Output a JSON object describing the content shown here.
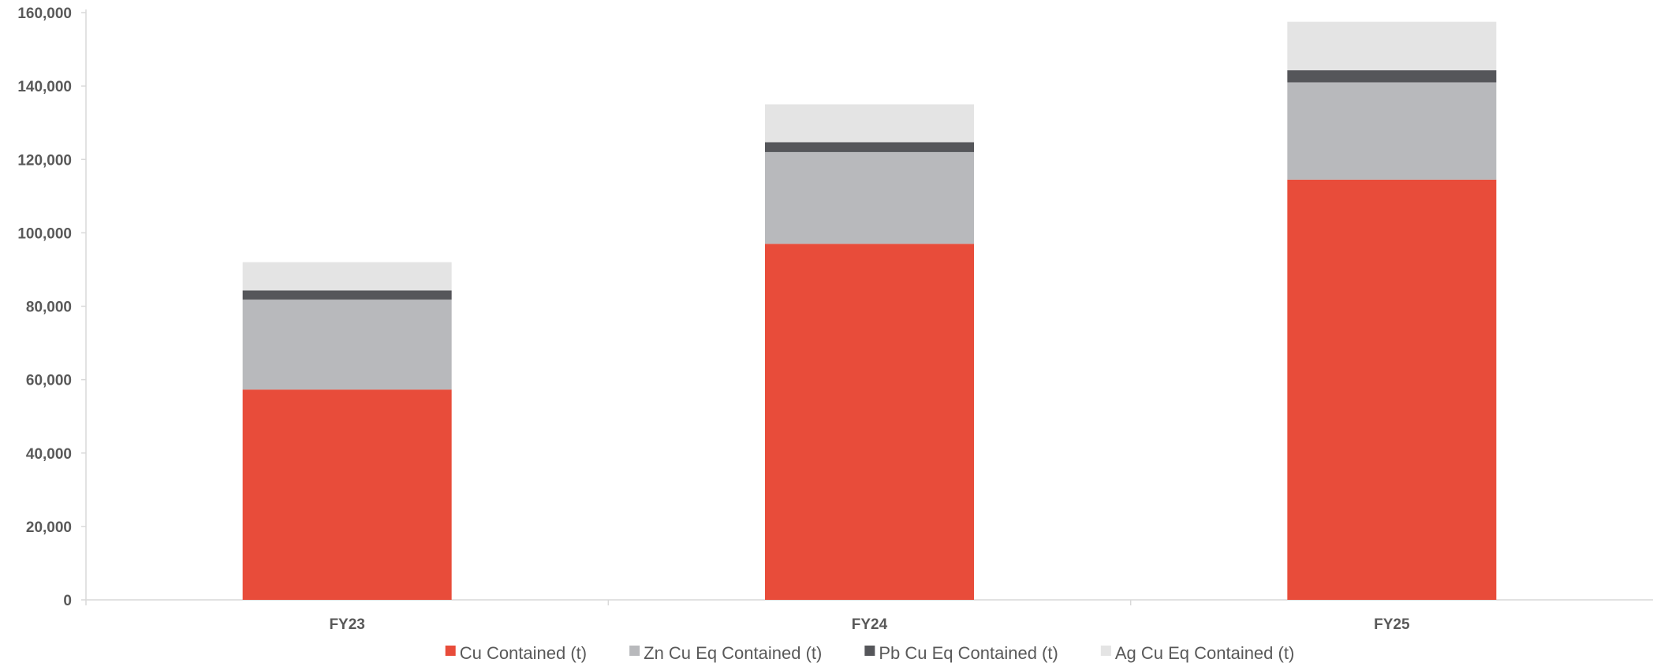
{
  "chart_data": {
    "type": "bar",
    "stacked": true,
    "title": "",
    "xlabel": "",
    "ylabel": "",
    "categories": [
      "FY23",
      "FY24",
      "FY25"
    ],
    "ylim": [
      0,
      160000
    ],
    "yticks": [
      0,
      20000,
      40000,
      60000,
      80000,
      100000,
      120000,
      140000,
      160000
    ],
    "ytick_labels": [
      "0",
      "20,000",
      "40,000",
      "60,000",
      "80,000",
      "100,000",
      "120,000",
      "140,000",
      "160,000"
    ],
    "grid": false,
    "legend_position": "bottom",
    "series": [
      {
        "name": "Cu Contained (t)",
        "color": "#e84c3a",
        "values": [
          57300,
          97000,
          114500
        ]
      },
      {
        "name": "Zn Cu Eq Contained (t)",
        "color": "#b8b9bc",
        "values": [
          24500,
          25000,
          26500
        ]
      },
      {
        "name": "Pb Cu Eq Contained (t)",
        "color": "#55565a",
        "values": [
          2500,
          2700,
          3300
        ]
      },
      {
        "name": "Ag Cu Eq Contained (t)",
        "color": "#e4e4e4",
        "values": [
          7700,
          10300,
          13200
        ]
      }
    ]
  }
}
